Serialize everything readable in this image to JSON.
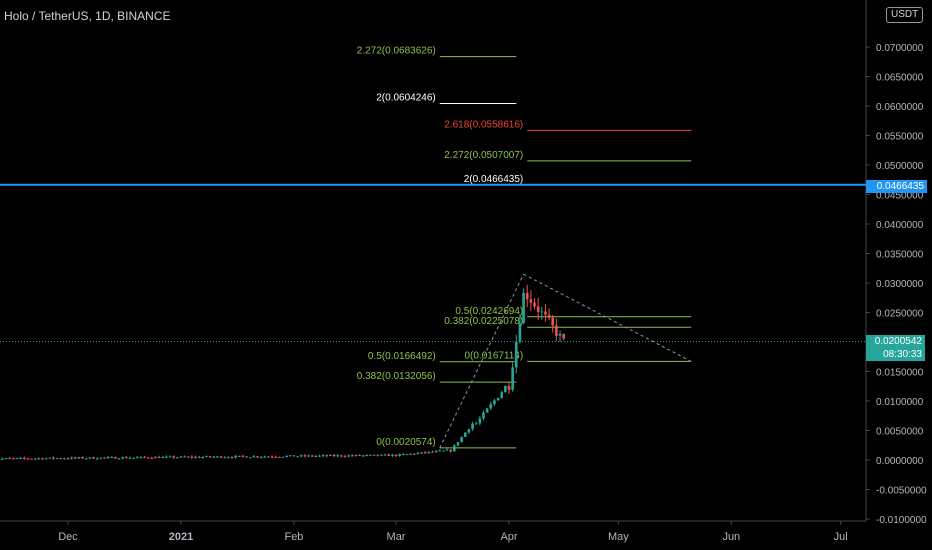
{
  "header": {
    "symbol_title": "Holo / TetherUS, 1D, BINANCE",
    "currency": "USDT"
  },
  "price_tags": {
    "last_price": "0.0200542",
    "countdown": "08:30:33",
    "horizontal_line": "0.0466435"
  },
  "colors": {
    "background": "#000000",
    "up_candle": "#26a69a",
    "down_candle": "#ef5350",
    "fib_green": "#8bc34a",
    "fib_white": "#ffffff",
    "fib_red": "#f44336",
    "hline": "#2196f3",
    "axis_text": "#b2b5be"
  },
  "chart_data": {
    "type": "candlestick",
    "symbol": "Holo / TetherUS",
    "interval": "1D",
    "exchange": "BINANCE",
    "x_axis": {
      "tick_labels": [
        "Dec",
        "2021",
        "Feb",
        "Mar",
        "Apr",
        "May",
        "Jun",
        "Jul"
      ],
      "tick_dates": [
        "2020-12-01",
        "2021-01-01",
        "2021-02-01",
        "2021-03-01",
        "2021-04-01",
        "2021-05-01",
        "2021-06-01",
        "2021-07-01"
      ]
    },
    "y_axis": {
      "range": [
        -0.01,
        0.075
      ],
      "tick_labels": [
        "0.0700000",
        "0.0650000",
        "0.0600000",
        "0.0550000",
        "0.0500000",
        "0.0450000",
        "0.0400000",
        "0.0350000",
        "0.0300000",
        "0.0250000",
        "0.0200000",
        "0.0150000",
        "0.0100000",
        "0.0050000",
        "0.0000000",
        "-0.0050000",
        "-0.0100000"
      ],
      "tick_values": [
        0.07,
        0.065,
        0.06,
        0.055,
        0.05,
        0.045,
        0.04,
        0.035,
        0.03,
        0.025,
        0.02,
        0.015,
        0.01,
        0.005,
        0.0,
        -0.005,
        -0.01
      ]
    },
    "last_price": 0.0200542,
    "horizontal_line": 0.0466435,
    "candle_segments": [
      {
        "from": "2020-11-10",
        "to": "2021-02-28",
        "start_price": 0.0002,
        "end_price": 0.0008
      },
      {
        "from": "2021-03-01",
        "to": "2021-03-15",
        "start_price": 0.0008,
        "end_price": 0.0016
      },
      {
        "from": "2021-03-16",
        "to": "2021-03-22",
        "start_price": 0.0016,
        "end_price": 0.0062
      },
      {
        "from": "2021-03-23",
        "to": "2021-03-31",
        "start_price": 0.0062,
        "end_price": 0.0124
      },
      {
        "from": "2021-04-01",
        "to": "2021-04-05",
        "start_price": 0.0124,
        "end_price": 0.028
      },
      {
        "from": "2021-04-06",
        "to": "2021-04-16",
        "start_price": 0.028,
        "end_price": 0.0200542
      }
    ],
    "fib_levels": [
      {
        "label": "2.272(0.0683626)",
        "value": 0.0683626,
        "color": "green",
        "from": "2021-03-13",
        "to": "2021-04-03"
      },
      {
        "label": "2(0.0604246)",
        "value": 0.0604246,
        "color": "white",
        "from": "2021-03-13",
        "to": "2021-04-03"
      },
      {
        "label": "2.618(0.0558616)",
        "value": 0.0558616,
        "color": "red",
        "from": "2021-04-06",
        "to": "2021-05-21"
      },
      {
        "label": "2.272(0.0507007)",
        "value": 0.0507007,
        "color": "green",
        "from": "2021-04-06",
        "to": "2021-05-21"
      },
      {
        "label": "2(0.0466435)",
        "value": 0.0466435,
        "color": "white",
        "from": "2021-04-06",
        "to": "2021-05-21"
      },
      {
        "label": "0.5(0.0242694)",
        "value": 0.0242694,
        "color": "green",
        "from": "2021-04-06",
        "to": "2021-05-21"
      },
      {
        "label": "0.382(0.0225078)",
        "value": 0.0225078,
        "color": "green",
        "from": "2021-04-06",
        "to": "2021-05-21"
      },
      {
        "label": "0(0.0167114)",
        "value": 0.0167114,
        "color": "green",
        "from": "2021-04-06",
        "to": "2021-05-21"
      },
      {
        "label": "0.5(0.0166492)",
        "value": 0.0166492,
        "color": "green",
        "from": "2021-03-13",
        "to": "2021-04-03"
      },
      {
        "label": "0.382(0.0132056)",
        "value": 0.0132056,
        "color": "green",
        "from": "2021-03-13",
        "to": "2021-04-03"
      },
      {
        "label": "0(0.0020574)",
        "value": 0.0020574,
        "color": "green",
        "from": "2021-03-13",
        "to": "2021-04-03"
      }
    ],
    "trend_lines": [
      {
        "from_date": "2021-03-13",
        "from_price": 0.0020574,
        "to_date": "2021-04-05",
        "to_price": 0.0315
      },
      {
        "from_date": "2021-04-05",
        "from_price": 0.0315,
        "to_date": "2021-05-21",
        "to_price": 0.0167114
      }
    ]
  }
}
